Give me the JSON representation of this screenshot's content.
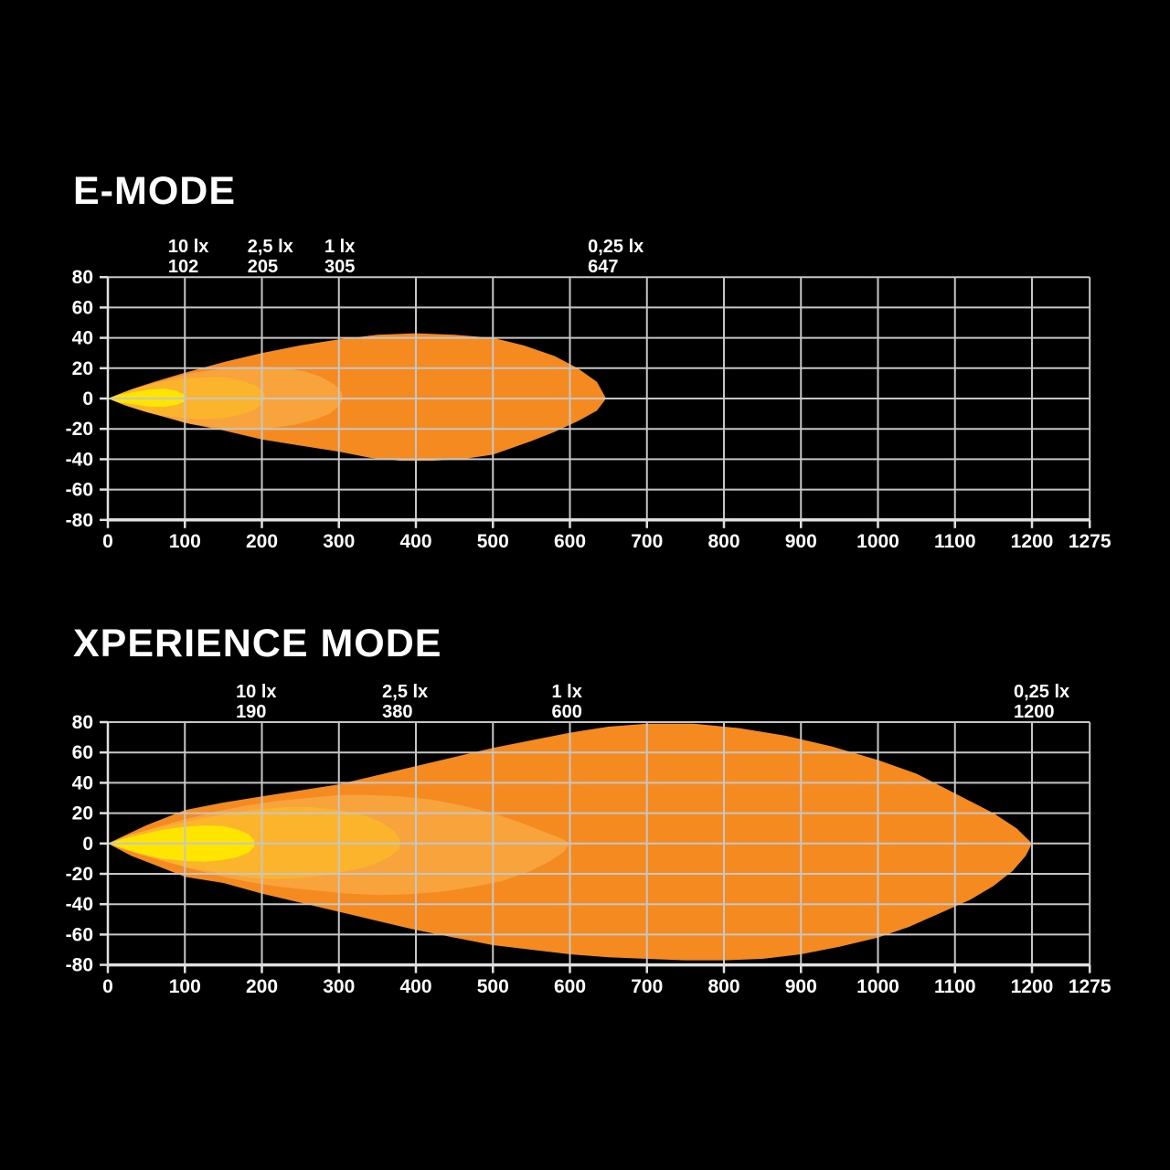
{
  "figure": {
    "background_color": "#000000",
    "grid_color": "#c6c6c6",
    "axis_color": "#e0e0e0",
    "text_color": "#ffffff"
  },
  "chart_data": [
    {
      "type": "area",
      "title": "E-MODE",
      "xlabel": "",
      "ylabel": "",
      "xlim": [
        0,
        1275
      ],
      "ylim": [
        -80,
        80
      ],
      "grid": true,
      "x_ticks": {
        "values": [
          0,
          100,
          200,
          300,
          400,
          500,
          600,
          700,
          800,
          900,
          1000,
          1100,
          1200,
          1275
        ],
        "labels": [
          "0",
          "100",
          "200",
          "300",
          "400",
          "500",
          "600",
          "700",
          "800",
          "900",
          "1000",
          "1100",
          "1200",
          "1275"
        ]
      },
      "y_ticks": {
        "values": [
          80,
          60,
          40,
          20,
          0,
          -20,
          -40,
          -60,
          -80
        ],
        "labels": [
          "80",
          "60",
          "40",
          "20",
          "0",
          "-20",
          "-40",
          "-60",
          "-80"
        ]
      },
      "annotations": [
        {
          "lux": "10 lx",
          "distance": "102",
          "x": 102
        },
        {
          "lux": "2,5 lx",
          "distance": "205",
          "x": 205
        },
        {
          "lux": "1 lx",
          "distance": "305",
          "x": 305
        },
        {
          "lux": "0,25 lx",
          "distance": "647",
          "x": 647
        }
      ],
      "contours": [
        {
          "lux": "0,25 lx",
          "max_distance_m": 647,
          "color": "#F58A20",
          "points": [
            [
              0,
              0
            ],
            [
              30,
              6
            ],
            [
              60,
              11
            ],
            [
              100,
              17
            ],
            [
              150,
              24
            ],
            [
              200,
              30
            ],
            [
              250,
              35
            ],
            [
              300,
              39
            ],
            [
              350,
              42
            ],
            [
              400,
              43
            ],
            [
              450,
              42
            ],
            [
              500,
              40
            ],
            [
              540,
              35
            ],
            [
              580,
              28
            ],
            [
              610,
              20
            ],
            [
              635,
              11
            ],
            [
              647,
              0
            ],
            [
              635,
              -8
            ],
            [
              610,
              -15
            ],
            [
              580,
              -22
            ],
            [
              550,
              -28
            ],
            [
              500,
              -37
            ],
            [
              460,
              -40
            ],
            [
              420,
              -41
            ],
            [
              380,
              -41
            ],
            [
              340,
              -39
            ],
            [
              300,
              -35
            ],
            [
              250,
              -31
            ],
            [
              200,
              -27
            ],
            [
              150,
              -21
            ],
            [
              100,
              -16
            ],
            [
              60,
              -10
            ],
            [
              30,
              -5
            ]
          ]
        },
        {
          "lux": "1 lx",
          "max_distance_m": 305,
          "color": "#F8A33C",
          "points": [
            [
              0,
              0
            ],
            [
              25,
              5
            ],
            [
              50,
              9
            ],
            [
              80,
              13
            ],
            [
              110,
              17
            ],
            [
              140,
              19
            ],
            [
              170,
              21
            ],
            [
              200,
              21
            ],
            [
              230,
              20
            ],
            [
              255,
              18
            ],
            [
              278,
              14
            ],
            [
              295,
              9
            ],
            [
              304,
              4
            ],
            [
              305,
              0
            ],
            [
              300,
              -5
            ],
            [
              288,
              -10
            ],
            [
              268,
              -14
            ],
            [
              245,
              -17
            ],
            [
              220,
              -19
            ],
            [
              195,
              -20
            ],
            [
              170,
              -20
            ],
            [
              140,
              -19
            ],
            [
              110,
              -17
            ],
            [
              80,
              -13
            ],
            [
              50,
              -9
            ],
            [
              25,
              -5
            ]
          ]
        },
        {
          "lux": "2,5 lx",
          "max_distance_m": 205,
          "color": "#FBB42C",
          "points": [
            [
              0,
              0
            ],
            [
              20,
              4
            ],
            [
              45,
              8
            ],
            [
              70,
              11
            ],
            [
              100,
              13
            ],
            [
              125,
              14
            ],
            [
              150,
              14
            ],
            [
              172,
              12
            ],
            [
              190,
              9
            ],
            [
              202,
              5
            ],
            [
              205,
              0
            ],
            [
              200,
              -4
            ],
            [
              188,
              -8
            ],
            [
              170,
              -11
            ],
            [
              148,
              -13
            ],
            [
              125,
              -13.5
            ],
            [
              100,
              -13
            ],
            [
              70,
              -11
            ],
            [
              45,
              -8
            ],
            [
              20,
              -4
            ]
          ]
        },
        {
          "lux": "10 lx",
          "max_distance_m": 102,
          "color": "#FFE500",
          "points": [
            [
              0,
              0
            ],
            [
              15,
              2.5
            ],
            [
              35,
              4.5
            ],
            [
              55,
              6
            ],
            [
              75,
              6.5
            ],
            [
              90,
              5
            ],
            [
              100,
              2.5
            ],
            [
              102,
              0
            ],
            [
              100,
              -2
            ],
            [
              90,
              -4
            ],
            [
              75,
              -5.5
            ],
            [
              55,
              -5.5
            ],
            [
              35,
              -4
            ],
            [
              15,
              -2.5
            ]
          ]
        }
      ]
    },
    {
      "type": "area",
      "title": "XPERIENCE MODE",
      "xlabel": "",
      "ylabel": "",
      "xlim": [
        0,
        1275
      ],
      "ylim": [
        -80,
        80
      ],
      "grid": true,
      "x_ticks": {
        "values": [
          0,
          100,
          200,
          300,
          400,
          500,
          600,
          700,
          800,
          900,
          1000,
          1100,
          1200,
          1275
        ],
        "labels": [
          "0",
          "100",
          "200",
          "300",
          "400",
          "500",
          "600",
          "700",
          "800",
          "900",
          "1000",
          "1100",
          "1200",
          "1275"
        ]
      },
      "y_ticks": {
        "values": [
          80,
          60,
          40,
          20,
          0,
          -20,
          -40,
          -60,
          -80
        ],
        "labels": [
          "80",
          "60",
          "40",
          "20",
          "0",
          "-20",
          "-40",
          "-60",
          "-80"
        ]
      },
      "annotations": [
        {
          "lux": "10 lx",
          "distance": "190",
          "x": 190
        },
        {
          "lux": "2,5 lx",
          "distance": "380",
          "x": 380
        },
        {
          "lux": "1 lx",
          "distance": "600",
          "x": 600
        },
        {
          "lux": "0,25 lx",
          "distance": "1200",
          "x": 1200
        }
      ],
      "contours": [
        {
          "lux": "0,25 lx",
          "max_distance_m": 1200,
          "color": "#F58A20",
          "points": [
            [
              0,
              0
            ],
            [
              50,
              12
            ],
            [
              100,
              22
            ],
            [
              150,
              27
            ],
            [
              200,
              31
            ],
            [
              250,
              35
            ],
            [
              300,
              39
            ],
            [
              350,
              45
            ],
            [
              400,
              51
            ],
            [
              450,
              57
            ],
            [
              500,
              63
            ],
            [
              550,
              68
            ],
            [
              600,
              73
            ],
            [
              650,
              77
            ],
            [
              700,
              79
            ],
            [
              760,
              79
            ],
            [
              820,
              76
            ],
            [
              880,
              71
            ],
            [
              940,
              64
            ],
            [
              1000,
              55
            ],
            [
              1050,
              46
            ],
            [
              1100,
              33
            ],
            [
              1150,
              20
            ],
            [
              1180,
              10
            ],
            [
              1200,
              0
            ],
            [
              1192,
              -8
            ],
            [
              1175,
              -18
            ],
            [
              1150,
              -28
            ],
            [
              1120,
              -37
            ],
            [
              1080,
              -46
            ],
            [
              1040,
              -55
            ],
            [
              1000,
              -62
            ],
            [
              950,
              -68
            ],
            [
              900,
              -73
            ],
            [
              850,
              -76
            ],
            [
              800,
              -77
            ],
            [
              750,
              -77
            ],
            [
              700,
              -76
            ],
            [
              650,
              -75
            ],
            [
              600,
              -73
            ],
            [
              550,
              -70
            ],
            [
              500,
              -67
            ],
            [
              450,
              -62
            ],
            [
              400,
              -57
            ],
            [
              350,
              -51
            ],
            [
              300,
              -45
            ],
            [
              250,
              -39
            ],
            [
              200,
              -33
            ],
            [
              150,
              -26
            ],
            [
              100,
              -22
            ],
            [
              60,
              -14
            ],
            [
              30,
              -8
            ]
          ]
        },
        {
          "lux": "1 lx",
          "max_distance_m": 600,
          "color": "#F8A33C",
          "points": [
            [
              0,
              0
            ],
            [
              30,
              6
            ],
            [
              65,
              11
            ],
            [
              100,
              16
            ],
            [
              140,
              21
            ],
            [
              180,
              25
            ],
            [
              220,
              28
            ],
            [
              260,
              30
            ],
            [
              300,
              32
            ],
            [
              340,
              32
            ],
            [
              380,
              31
            ],
            [
              420,
              29
            ],
            [
              460,
              25
            ],
            [
              500,
              20
            ],
            [
              535,
              14
            ],
            [
              565,
              8
            ],
            [
              590,
              3
            ],
            [
              600,
              0
            ],
            [
              593,
              -5
            ],
            [
              573,
              -12
            ],
            [
              545,
              -19
            ],
            [
              510,
              -25
            ],
            [
              470,
              -29
            ],
            [
              430,
              -32
            ],
            [
              390,
              -33.5
            ],
            [
              350,
              -34
            ],
            [
              310,
              -33
            ],
            [
              270,
              -31
            ],
            [
              230,
              -29
            ],
            [
              190,
              -26
            ],
            [
              150,
              -22
            ],
            [
              110,
              -17
            ],
            [
              75,
              -12
            ],
            [
              40,
              -7
            ]
          ]
        },
        {
          "lux": "2,5 lx",
          "max_distance_m": 380,
          "color": "#FBB42C",
          "points": [
            [
              0,
              0
            ],
            [
              25,
              5
            ],
            [
              55,
              9
            ],
            [
              90,
              13
            ],
            [
              125,
              17
            ],
            [
              160,
              20
            ],
            [
              195,
              22.5
            ],
            [
              230,
              24
            ],
            [
              265,
              24
            ],
            [
              300,
              22
            ],
            [
              330,
              19
            ],
            [
              355,
              14
            ],
            [
              372,
              8
            ],
            [
              380,
              2
            ],
            [
              378,
              -4
            ],
            [
              365,
              -9
            ],
            [
              345,
              -14
            ],
            [
              315,
              -18
            ],
            [
              280,
              -21
            ],
            [
              245,
              -23
            ],
            [
              210,
              -23.5
            ],
            [
              175,
              -22
            ],
            [
              140,
              -19
            ],
            [
              105,
              -16
            ],
            [
              70,
              -11
            ],
            [
              35,
              -6
            ]
          ]
        },
        {
          "lux": "10 lx",
          "max_distance_m": 190,
          "color": "#FFE500",
          "points": [
            [
              0,
              0
            ],
            [
              20,
              3
            ],
            [
              45,
              6
            ],
            [
              70,
              9
            ],
            [
              100,
              11
            ],
            [
              125,
              12
            ],
            [
              150,
              11.5
            ],
            [
              170,
              9
            ],
            [
              183,
              6
            ],
            [
              190,
              2
            ],
            [
              190,
              -2
            ],
            [
              183,
              -6
            ],
            [
              168,
              -9
            ],
            [
              148,
              -11
            ],
            [
              125,
              -12
            ],
            [
              100,
              -11.5
            ],
            [
              70,
              -10
            ],
            [
              45,
              -7
            ],
            [
              20,
              -3.5
            ]
          ]
        }
      ]
    }
  ]
}
